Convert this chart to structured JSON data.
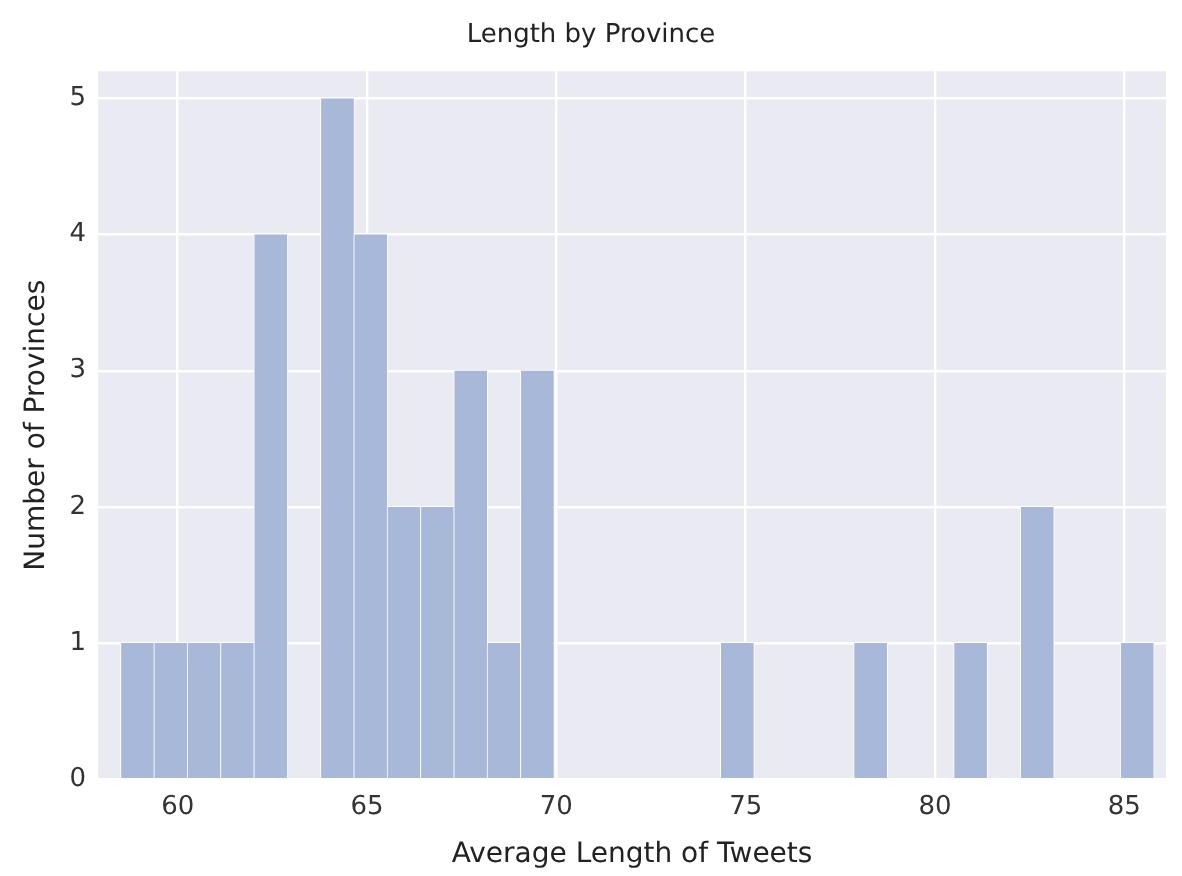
{
  "chart_data": {
    "type": "histogram",
    "title": "Length by Province",
    "xlabel": "Average Length of Tweets",
    "ylabel": "Number of Provinces",
    "bins": [
      58.5,
      59.38,
      60.26,
      61.14,
      62.02,
      62.9,
      63.78,
      64.66,
      65.54,
      66.42,
      67.3,
      68.18,
      69.06,
      69.94,
      70.82,
      71.7,
      72.58,
      73.46,
      74.34,
      75.22,
      76.1,
      76.98,
      77.86,
      78.74,
      79.62,
      80.5,
      81.38,
      82.26,
      83.14,
      84.02,
      84.9,
      85.78
    ],
    "values": [
      1,
      1,
      1,
      1,
      4,
      0,
      5,
      4,
      2,
      2,
      3,
      1,
      3,
      0,
      0,
      0,
      0,
      0,
      1,
      0,
      0,
      0,
      1,
      0,
      0,
      1,
      0,
      2,
      0,
      0,
      1
    ],
    "color": "#a8b8d8",
    "xlim": [
      57.9,
      86.1
    ],
    "ylim": [
      0,
      5.2
    ],
    "xticks": [
      60,
      65,
      70,
      75,
      80,
      85
    ],
    "yticks": [
      0,
      1,
      2,
      3,
      4,
      5
    ],
    "grid": true
  }
}
